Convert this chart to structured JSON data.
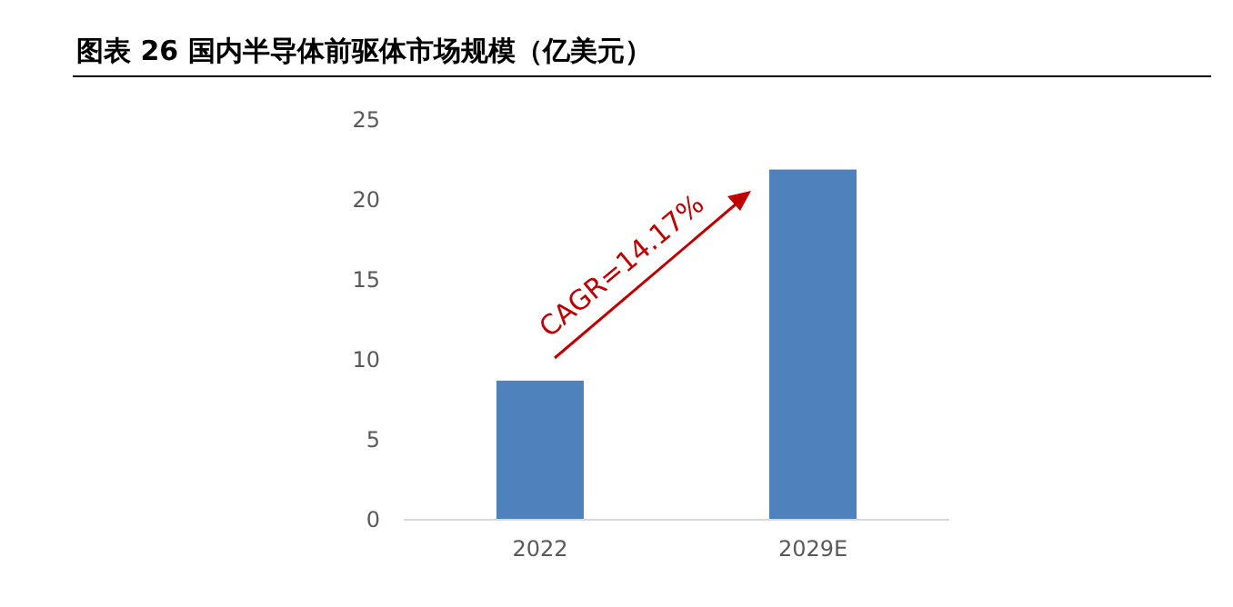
{
  "chart_data": {
    "type": "bar",
    "title": "图表 26 国内半导体前驱体市场规模（亿美元）",
    "categories": [
      "2022",
      "2029E"
    ],
    "values": [
      8.7,
      21.9
    ],
    "color": "#4f81bd",
    "ylim": [
      0,
      25
    ],
    "yticks": [
      0,
      5,
      10,
      15,
      20,
      25
    ],
    "grid": false,
    "annotations": [
      "CAGR=14.17%"
    ]
  }
}
